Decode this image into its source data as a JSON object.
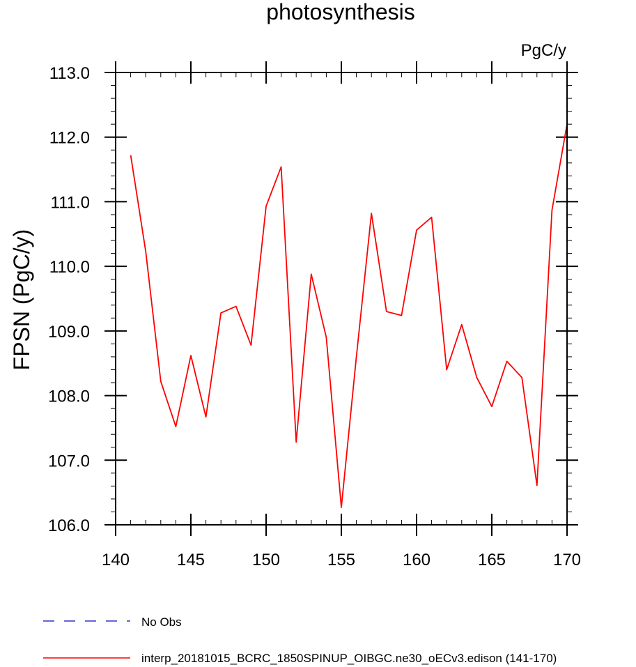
{
  "chart_data": {
    "type": "line",
    "title": "photosynthesis",
    "units_label": "PgC/y",
    "ylabel": "FPSN  (PgC/y)",
    "xlabel": "",
    "xlim": [
      140,
      170
    ],
    "ylim": [
      106.0,
      113.0
    ],
    "x_ticks": [
      140,
      145,
      150,
      155,
      160,
      165,
      170
    ],
    "y_ticks": [
      106.0,
      107.0,
      108.0,
      109.0,
      110.0,
      111.0,
      112.0,
      113.0
    ],
    "x_minor_step": 1,
    "y_minor_step": 0.2,
    "grid": false,
    "legend_position": "bottom-left",
    "series": [
      {
        "name": "interp_20181015_BCRC_1850SPINUP_OIBGC.ne30_oECv3.edison (141-170)",
        "color": "#ff0000",
        "style": "solid",
        "x": [
          141,
          142,
          143,
          144,
          145,
          146,
          147,
          148,
          149,
          150,
          151,
          152,
          153,
          154,
          155,
          156,
          157,
          158,
          159,
          160,
          161,
          162,
          163,
          164,
          165,
          166,
          167,
          168,
          169,
          170
        ],
        "y": [
          111.72,
          110.23,
          108.22,
          107.52,
          108.62,
          107.67,
          109.28,
          109.38,
          108.78,
          110.93,
          111.54,
          107.28,
          109.88,
          108.9,
          106.27,
          108.6,
          110.82,
          109.3,
          109.24,
          110.56,
          110.76,
          108.4,
          109.1,
          108.28,
          107.83,
          108.53,
          108.28,
          106.61,
          110.87,
          112.2
        ]
      }
    ],
    "legend": [
      {
        "label": "No Obs",
        "color": "#3333cc",
        "style": "dashed"
      },
      {
        "label": "interp_20181015_BCRC_1850SPINUP_OIBGC.ne30_oECv3.edison (141-170)",
        "color": "#ff0000",
        "style": "solid"
      }
    ]
  }
}
